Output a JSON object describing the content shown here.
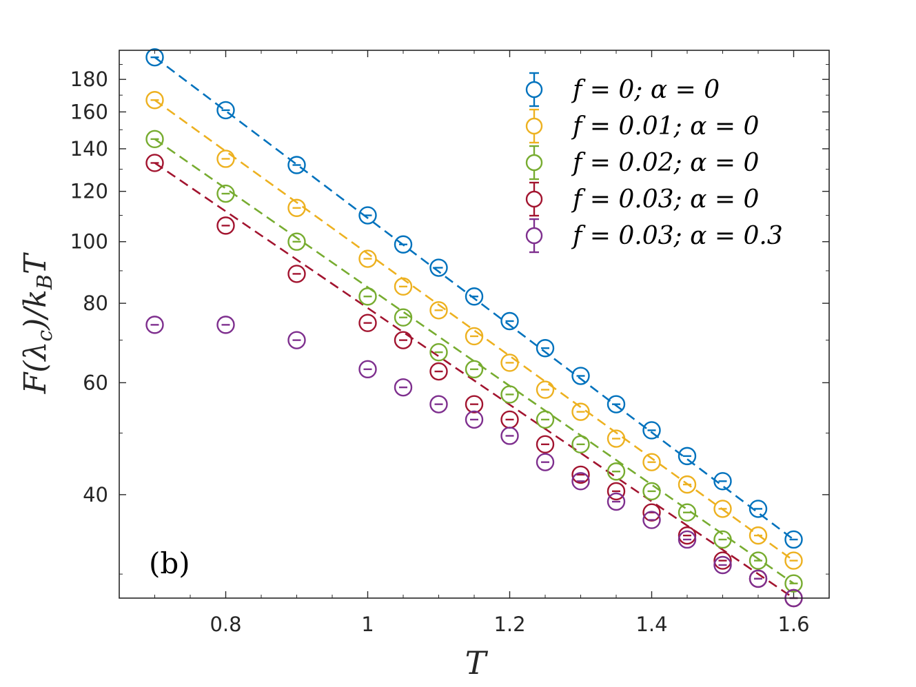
{
  "chart_data": {
    "type": "scatter",
    "panel_label": "(b)",
    "xlabel": "T",
    "ylabel": "F(λc)/kBT",
    "ylabel_parts": {
      "main": "F(λ",
      "sub1": "c",
      "mid": ")/k",
      "sub2": "B",
      "end": "T"
    },
    "xscale": "linear",
    "yscale": "log",
    "xlim": [
      0.65,
      1.65
    ],
    "ylim": [
      27.5,
      200
    ],
    "xticks": [
      0.8,
      1.0,
      1.2,
      1.4,
      1.6
    ],
    "xtick_labels": [
      "0.8",
      "1",
      "1.2",
      "1.4",
      "1.6"
    ],
    "yticks": [
      40,
      60,
      80,
      100,
      120,
      140,
      160,
      180
    ],
    "ytick_labels": [
      "40",
      "60",
      "80",
      "100",
      "120",
      "140",
      "160",
      "180"
    ],
    "legend_position": "top-right",
    "x": [
      0.7,
      0.8,
      0.9,
      1.0,
      1.05,
      1.1,
      1.15,
      1.2,
      1.25,
      1.3,
      1.35,
      1.4,
      1.45,
      1.5,
      1.55,
      1.6
    ],
    "series": [
      {
        "name": "f = 0; α = 0",
        "color": "#0072BD",
        "fit": true,
        "values": [
          195,
          161,
          132,
          110,
          99,
          91,
          82,
          75,
          68,
          61.5,
          55.5,
          50.5,
          46,
          42,
          38,
          34
        ]
      },
      {
        "name": "f = 0.01; α = 0",
        "color": "#EDB120",
        "fit": true,
        "values": [
          167,
          135,
          113,
          94,
          85,
          78,
          71,
          64.5,
          58.5,
          54,
          49,
          45,
          41.5,
          38,
          34.5,
          31.5
        ]
      },
      {
        "name": "f = 0.02; α = 0",
        "color": "#77AC30",
        "fit": true,
        "values": [
          145,
          119,
          100,
          82,
          76,
          67,
          63,
          57.5,
          52.5,
          48,
          43.5,
          40.5,
          37.5,
          34,
          31.5,
          29
        ]
      },
      {
        "name": "f = 0.03; α = 0",
        "color": "#A2142F",
        "fit": true,
        "values": [
          133,
          106,
          89,
          74.5,
          70,
          62.5,
          55.5,
          52.5,
          48,
          43,
          40.5,
          37.5,
          34.5,
          31.5,
          29.5,
          27.5
        ]
      },
      {
        "name": "f = 0.03; α = 0.3",
        "color": "#7E2F8E",
        "fit": false,
        "values": [
          74,
          74,
          70,
          63,
          59,
          55.5,
          52.5,
          49.5,
          45,
          42,
          39,
          36.5,
          34,
          31,
          29.5,
          27.5
        ]
      }
    ]
  }
}
